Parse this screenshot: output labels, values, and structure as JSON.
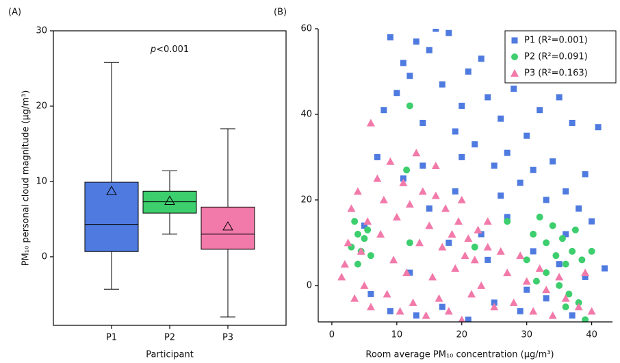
{
  "chart_data": [
    {
      "type": "box",
      "panel_label": "(A)",
      "x_label": "Participant",
      "y_label": "PM₁₀ personal cloud magnitude (μg/m³)",
      "annotation": {
        "italic": "p",
        "text": "<0.001"
      },
      "categories": [
        "P1",
        "P2",
        "P3"
      ],
      "boxes": [
        {
          "min": -4.3,
          "q1": 0.7,
          "median": 4.3,
          "q3": 9.9,
          "max": 25.8,
          "mean": 8.7,
          "color": "#4f7be0"
        },
        {
          "min": 3.0,
          "q1": 5.8,
          "median": 7.3,
          "q3": 8.7,
          "max": 11.4,
          "mean": 7.4,
          "color": "#3dce6e"
        },
        {
          "min": -8.0,
          "q1": 1.0,
          "median": 3.0,
          "q3": 6.6,
          "max": 17.0,
          "mean": 4.0,
          "color": "#f27aaa"
        }
      ],
      "ylim": [
        -9.1,
        30
      ],
      "yticks": [
        0,
        10,
        20,
        30
      ]
    },
    {
      "type": "scatter",
      "panel_label": "(B)",
      "x_label": "Room average PM₁₀ concentration (μg/m³)",
      "xlim": [
        -2.1,
        43.2
      ],
      "xticks": [
        0,
        10,
        20,
        30,
        40
      ],
      "ylim": [
        -8.5,
        60
      ],
      "yticks": [
        0,
        20,
        40,
        60
      ],
      "legend": "top-right",
      "series": [
        {
          "name": "P1 (R²=0.001)",
          "color": "#4f7be0",
          "marker": "square",
          "x": [
            5,
            7,
            8,
            9,
            10,
            11,
            12,
            13,
            14,
            15,
            16,
            17,
            18,
            19,
            20,
            21,
            22,
            23,
            24,
            25,
            26,
            27,
            28,
            29,
            30,
            31,
            32,
            33,
            34,
            35,
            36,
            37,
            38,
            39,
            40,
            41,
            9,
            13,
            17,
            21,
            25,
            29,
            33,
            37,
            11,
            15,
            19,
            23,
            27,
            31,
            35,
            39,
            6,
            12,
            18,
            24,
            30,
            36,
            42,
            14,
            20,
            26
          ],
          "y": [
            14,
            30,
            41,
            58,
            45,
            52,
            49,
            57,
            38,
            55,
            60,
            47,
            59,
            36,
            42,
            50,
            33,
            53,
            44,
            28,
            39,
            31,
            46,
            24,
            35,
            27,
            41,
            20,
            29,
            44,
            22,
            38,
            18,
            26,
            15,
            37,
            -6,
            -7,
            -5,
            -8,
            -4,
            -6,
            -3,
            -7,
            25,
            18,
            22,
            12,
            16,
            8,
            5,
            2,
            -2,
            3,
            10,
            6,
            -1,
            12,
            4,
            28,
            30,
            21
          ]
        },
        {
          "name": "P2 (R²=0.091)",
          "color": "#3dce6e",
          "marker": "circle",
          "x": [
            3,
            3.5,
            4,
            4.5,
            5,
            5.5,
            6,
            4,
            12,
            11.5,
            12,
            22,
            27,
            30,
            31,
            32,
            33,
            33,
            34,
            34.5,
            35,
            35.5,
            36,
            36.5,
            37,
            37.5,
            38,
            38.5,
            39,
            40,
            31.5,
            36
          ],
          "y": [
            9,
            15,
            12,
            8,
            11,
            13,
            7,
            5,
            42,
            27,
            10,
            9,
            15,
            6,
            12,
            16,
            10,
            3,
            14,
            7,
            0,
            11,
            5,
            -2,
            8,
            13,
            -4,
            6,
            -8,
            8,
            1,
            -5
          ]
        },
        {
          "name": "P3 (R²=0.163)",
          "color": "#f27aaa",
          "marker": "triangle",
          "x": [
            1.5,
            2,
            2.5,
            3,
            3.5,
            4,
            4.5,
            5,
            5.5,
            6,
            6,
            7,
            7.5,
            8,
            8.5,
            9,
            9.5,
            10,
            10.5,
            11,
            11.5,
            12,
            12.5,
            13,
            13.5,
            14,
            14.5,
            15,
            15.5,
            16,
            16.5,
            17,
            17.5,
            18,
            18.5,
            19,
            19.5,
            20,
            20.5,
            21,
            21.5,
            22,
            22.5,
            23,
            24,
            25,
            26,
            27,
            28,
            29,
            30,
            31,
            32,
            33,
            34,
            35,
            36,
            38,
            39,
            40,
            20,
            16,
            24
          ],
          "y": [
            2,
            5,
            10,
            18,
            -3,
            22,
            8,
            0,
            15,
            38,
            -5,
            25,
            12,
            20,
            -2,
            29,
            6,
            16,
            -6,
            24,
            3,
            19,
            -4,
            31,
            10,
            22,
            -7,
            14,
            2,
            21,
            -3,
            9,
            18,
            -6,
            12,
            4,
            15,
            -8,
            7,
            11,
            -2,
            6,
            13,
            0,
            9,
            -5,
            8,
            3,
            -4,
            7,
            1,
            -6,
            4,
            -1,
            -7,
            2,
            -3,
            -5,
            3,
            -6,
            20,
            28,
            15
          ]
        }
      ]
    }
  ]
}
